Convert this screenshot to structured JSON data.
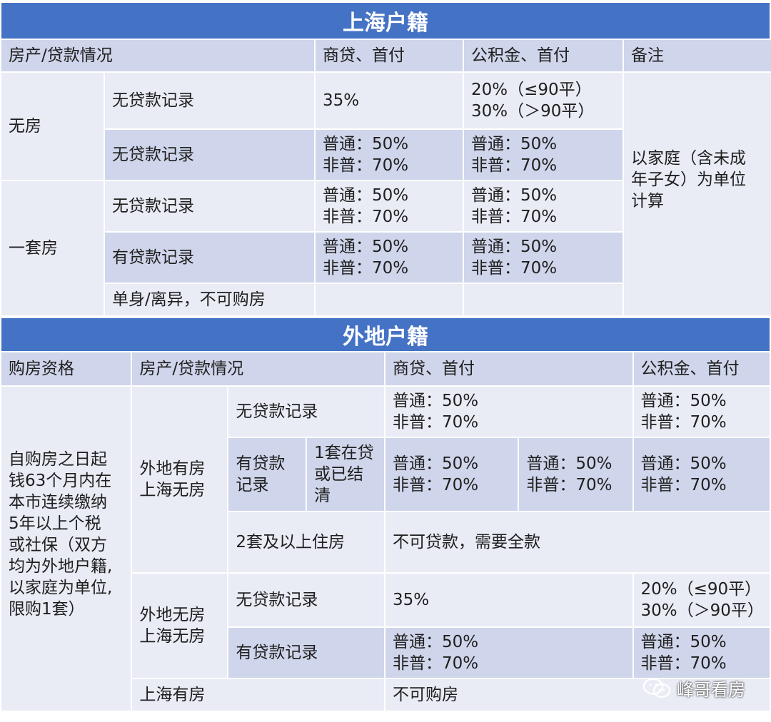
{
  "sh": {
    "title": "上海户籍",
    "headers": [
      "房产/贷款情况",
      "商贷、首付",
      "公积金、首付",
      "备注"
    ],
    "none_house": "无房",
    "one_house": "一套房",
    "rows": [
      {
        "cond": "无贷款记录",
        "comm": [
          "35%"
        ],
        "fund": [
          "20%（≤90平）",
          "30%（＞90平）"
        ]
      },
      {
        "cond": "无贷款记录",
        "comm": [
          "普通：50%",
          "非普：70%"
        ],
        "fund": [
          "普通：50%",
          "非普：70%"
        ]
      },
      {
        "cond": "无贷款记录",
        "comm": [
          "普通：50%",
          "非普：70%"
        ],
        "fund": [
          "普通：50%",
          "非普：70%"
        ]
      },
      {
        "cond": "有贷款记录",
        "comm": [
          "普通：50%",
          "非普：70%"
        ],
        "fund": [
          "普通：50%",
          "非普：70%"
        ]
      },
      {
        "cond": "单身/离异，不可购房"
      }
    ],
    "note": [
      "以家庭（含未成",
      "年子女）为单位",
      "计算"
    ]
  },
  "wd": {
    "title": "外地户籍",
    "headers": [
      "购房资格",
      "房产/贷款情况",
      "商贷、首付",
      "公积金、首付"
    ],
    "qualification": [
      "自购房之日起",
      "钱63个月内在",
      "本市连续缴纳",
      "5年以上个税",
      "或社保（双方",
      "均为外地户籍,",
      "以家庭为单位,",
      "限购1套）"
    ],
    "group1": [
      "外地有房",
      "上海无房"
    ],
    "group2": [
      "外地无房",
      "上海无房"
    ],
    "shanghai_has_house": "上海有房",
    "no_purchase": "不可购房",
    "rows": {
      "g1_none": {
        "cond": "无贷款记录",
        "comm": [
          "普通：50%",
          "非普：70%"
        ],
        "fund": [
          "普通：50%",
          "非普：70%"
        ]
      },
      "g1_has": {
        "cond": [
          "有贷款",
          "记录"
        ],
        "sub": [
          "1套在贷",
          "或已结",
          "清"
        ],
        "comm": [
          "普通：50%",
          "非普：70%"
        ],
        "comm2": [
          "普通：50%",
          "非普：70%"
        ],
        "fund": [
          "普通：50%",
          "非普：70%"
        ]
      },
      "g1_two": {
        "cond": "2套及以上住房",
        "comm": "不可贷款，需要全款"
      },
      "g2_none": {
        "cond": "无贷款记录",
        "comm": "35%",
        "fund": [
          "20%（≤90平）",
          "30%（＞90平）"
        ]
      },
      "g2_has": {
        "cond": "有贷款记录",
        "comm": [
          "普通：50%",
          "非普：70%"
        ],
        "fund": [
          "普通：50%",
          "非普：70%"
        ]
      }
    }
  },
  "watermark": "峰哥看房",
  "colors": {
    "title_bg": "#4472c4",
    "header_bg": "#cfd5ea",
    "row_light": "#e9ebf5",
    "row_dark": "#cfd5ea"
  }
}
